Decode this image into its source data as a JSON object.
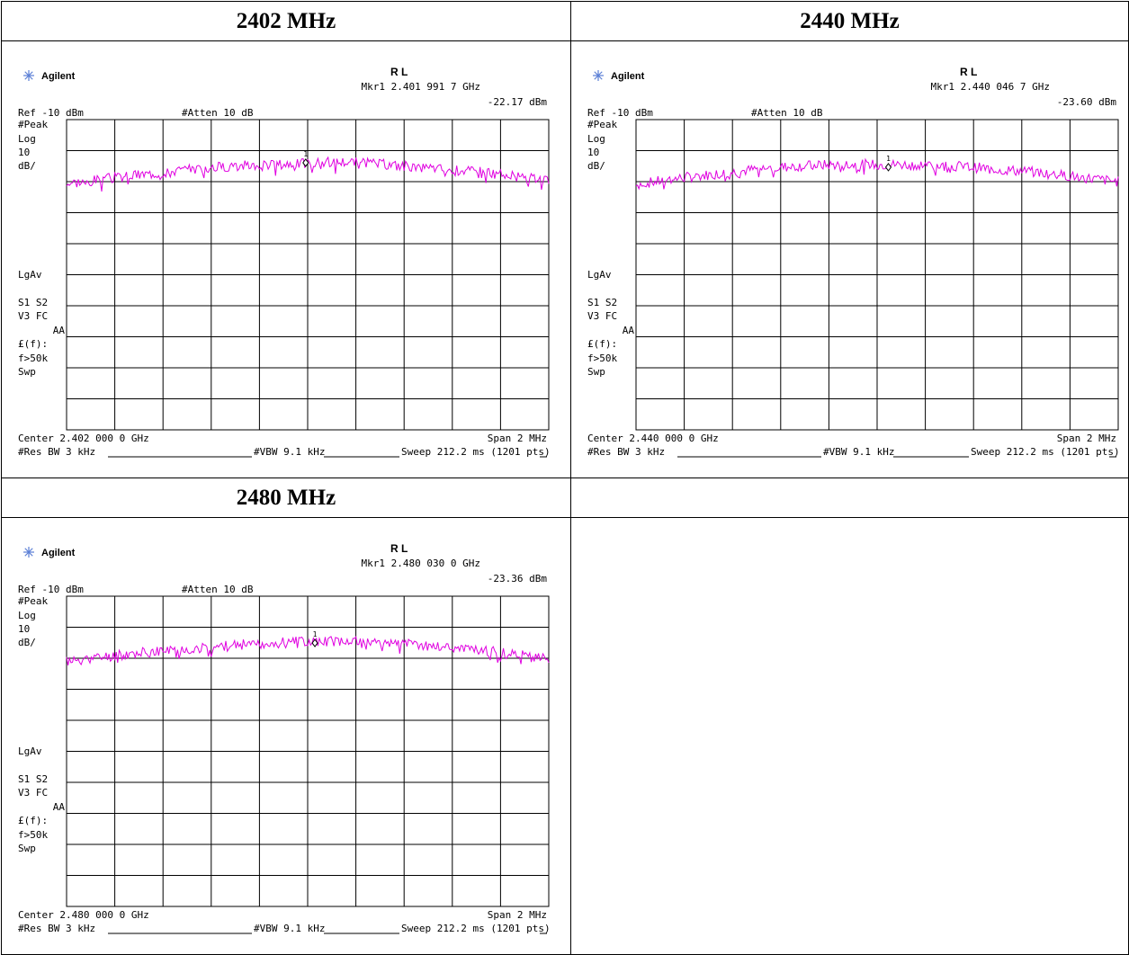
{
  "headers": [
    "2402 MHz",
    "2440 MHz",
    "2480 MHz",
    ""
  ],
  "colors": {
    "trace": "#e000e0",
    "grid": "#000000",
    "text": "#000000",
    "logo_star": "#5b7fd6"
  },
  "plots": [
    {
      "brand": "Agilent",
      "mode": "R L",
      "marker_label": "Mkr1",
      "marker_freq": "2.401 991 7 GHz",
      "marker_level": "-22.17 dBm",
      "ref": "Ref -10 dBm",
      "atten": "#Atten 10 dB",
      "left_labels": {
        "peak": "#Peak",
        "log": "Log",
        "scale": "10",
        "unit": "dB/",
        "lgav": "LgAv",
        "s1s2": "S1  S2",
        "v3fc": "V3  FC",
        "aa": "AA",
        "ef": "£(f):",
        "f50k": "f>50k",
        "swp": "Swp"
      },
      "marker_num": "1",
      "center": "Center 2.402 000 0 GHz",
      "span": "Span 2 MHz",
      "rbw": "#Res BW 3 kHz",
      "vbw": "#VBW 9.1 kHz",
      "sweep": "Sweep 212.2 ms (1201 pts)",
      "chart_data": {
        "type": "line",
        "xlabel": "",
        "ylabel": "",
        "x_range_ghz": [
          2.401,
          2.403
        ],
        "ylim_dbm": [
          -110,
          -10
        ],
        "grid": true,
        "series_shape": [
          -30.5,
          -29.0,
          -27.5,
          -26.0,
          -25.0,
          -24.5,
          -24.0,
          -23.5,
          -24.5,
          -25.5,
          -26.5,
          -28.0,
          -30.0
        ],
        "marker": {
          "x_ghz": 2.4019917,
          "y_dbm": -22.17
        },
        "seed": 3
      }
    },
    {
      "brand": "Agilent",
      "mode": "R L",
      "marker_label": "Mkr1",
      "marker_freq": "2.440 046 7 GHz",
      "marker_level": "-23.60 dBm",
      "ref": "Ref -10 dBm",
      "atten": "#Atten 10 dB",
      "left_labels": {
        "peak": "#Peak",
        "log": "Log",
        "scale": "10",
        "unit": "dB/",
        "lgav": "LgAv",
        "s1s2": "S1  S2",
        "v3fc": "V3  FC",
        "aa": "AA",
        "ef": "£(f):",
        "f50k": "f>50k",
        "swp": "Swp"
      },
      "marker_num": "1",
      "center": "Center 2.440 000 0 GHz",
      "span": "Span 2 MHz",
      "rbw": "#Res BW 3 kHz",
      "vbw": "#VBW 9.1 kHz",
      "sweep": "Sweep 212.2 ms (1201 pts)",
      "chart_data": {
        "type": "line",
        "xlabel": "",
        "ylabel": "",
        "x_range_ghz": [
          2.439,
          2.441
        ],
        "ylim_dbm": [
          -110,
          -10
        ],
        "grid": true,
        "series_shape": [
          -31.0,
          -29.0,
          -27.5,
          -26.0,
          -25.0,
          -24.5,
          -24.5,
          -24.5,
          -25.0,
          -26.0,
          -27.0,
          -28.5,
          -30.0
        ],
        "marker": {
          "x_ghz": 2.4400467,
          "y_dbm": -23.6
        },
        "seed": 7
      }
    },
    {
      "brand": "Agilent",
      "mode": "R L",
      "marker_label": "Mkr1",
      "marker_freq": "2.480 030 0 GHz",
      "marker_level": "-23.36 dBm",
      "ref": "Ref -10 dBm",
      "atten": "#Atten 10 dB",
      "left_labels": {
        "peak": "#Peak",
        "log": "Log",
        "scale": "10",
        "unit": "dB/",
        "lgav": "LgAv",
        "s1s2": "S1  S2",
        "v3fc": "V3  FC",
        "aa": "AA",
        "ef": "£(f):",
        "f50k": "f>50k",
        "swp": "Swp"
      },
      "marker_num": "1",
      "center": "Center 2.480 000 0 GHz",
      "span": "Span 2 MHz",
      "rbw": "#Res BW 3 kHz",
      "vbw": "#VBW 9.1 kHz",
      "sweep": "Sweep 212.2 ms (1201 pts)",
      "chart_data": {
        "type": "line",
        "xlabel": "",
        "ylabel": "",
        "x_range_ghz": [
          2.479,
          2.481
        ],
        "ylim_dbm": [
          -110,
          -10
        ],
        "grid": true,
        "series_shape": [
          -31.0,
          -29.5,
          -28.0,
          -27.0,
          -26.0,
          -25.0,
          -24.5,
          -24.5,
          -25.0,
          -26.0,
          -27.0,
          -28.5,
          -30.5
        ],
        "marker": {
          "x_ghz": 2.48003,
          "y_dbm": -23.36
        },
        "seed": 11
      }
    }
  ]
}
